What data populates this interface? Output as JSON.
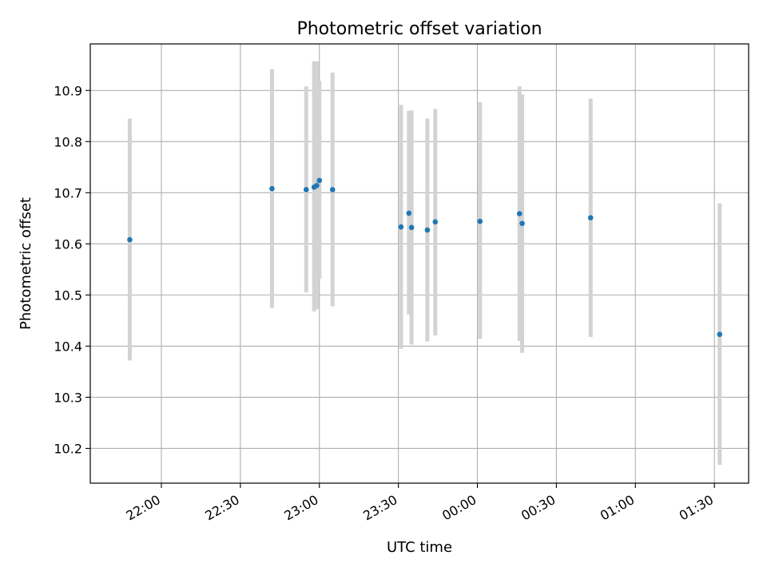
{
  "chart_data": {
    "type": "scatter",
    "title": "Photometric offset variation",
    "xlabel": "UTC time",
    "ylabel": "Photometric offset",
    "x_unit": "UTC time (hh:mm), spanning midnight",
    "xlim": [
      "21:33",
      "01:43"
    ],
    "ylim": [
      10.132,
      10.991
    ],
    "x_ticks": [
      "22:00",
      "22:30",
      "23:00",
      "23:30",
      "00:00",
      "00:30",
      "01:00",
      "01:30"
    ],
    "y_ticks": [
      "10.2",
      "10.3",
      "10.4",
      "10.5",
      "10.6",
      "10.7",
      "10.8",
      "10.9"
    ],
    "grid": true,
    "legend": "none",
    "colors": {
      "point": "#1f77b4",
      "errorbar": "#d3d3d3",
      "grid": "#b0b0b0"
    },
    "series": [
      {
        "points": [
          {
            "x": "21:48",
            "y": 10.608,
            "err_low": 10.372,
            "err_high": 10.845
          },
          {
            "x": "22:42",
            "y": 10.708,
            "err_low": 10.475,
            "err_high": 10.942
          },
          {
            "x": "22:55",
            "y": 10.706,
            "err_low": 10.505,
            "err_high": 10.908
          },
          {
            "x": "22:58",
            "y": 10.711,
            "err_low": 10.468,
            "err_high": 10.957
          },
          {
            "x": "22:59",
            "y": 10.714,
            "err_low": 10.472,
            "err_high": 10.957
          },
          {
            "x": "23:00",
            "y": 10.724,
            "err_low": 10.532,
            "err_high": 10.919
          },
          {
            "x": "23:05",
            "y": 10.706,
            "err_low": 10.478,
            "err_high": 10.935
          },
          {
            "x": "23:31",
            "y": 10.633,
            "err_low": 10.395,
            "err_high": 10.872
          },
          {
            "x": "23:34",
            "y": 10.66,
            "err_low": 10.462,
            "err_high": 10.86
          },
          {
            "x": "23:35",
            "y": 10.632,
            "err_low": 10.403,
            "err_high": 10.861
          },
          {
            "x": "23:41",
            "y": 10.627,
            "err_low": 10.409,
            "err_high": 10.845
          },
          {
            "x": "23:44",
            "y": 10.643,
            "err_low": 10.421,
            "err_high": 10.864
          },
          {
            "x": "00:01",
            "y": 10.644,
            "err_low": 10.414,
            "err_high": 10.877
          },
          {
            "x": "00:16",
            "y": 10.659,
            "err_low": 10.41,
            "err_high": 10.908
          },
          {
            "x": "00:17",
            "y": 10.64,
            "err_low": 10.387,
            "err_high": 10.892
          },
          {
            "x": "00:43",
            "y": 10.651,
            "err_low": 10.418,
            "err_high": 10.884
          },
          {
            "x": "01:32",
            "y": 10.423,
            "err_low": 10.168,
            "err_high": 10.679
          }
        ]
      }
    ]
  }
}
